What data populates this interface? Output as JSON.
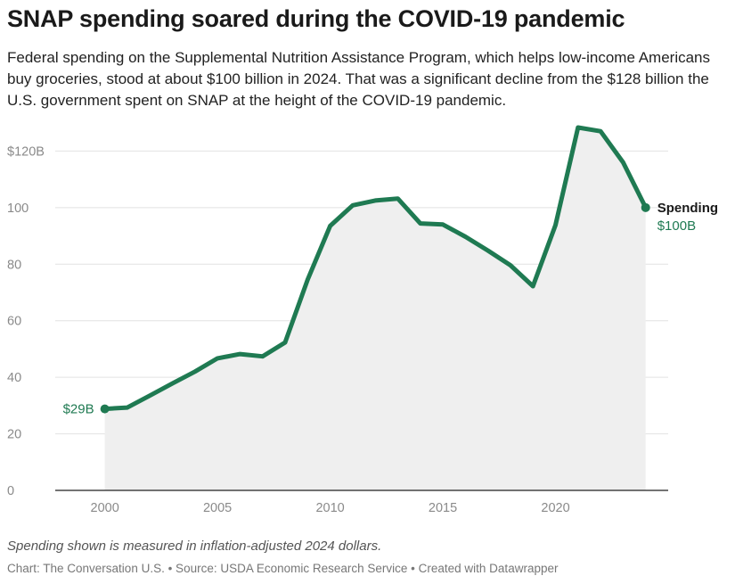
{
  "header": {
    "title": "SNAP spending soared during the COVID-19 pandemic",
    "subtitle": "Federal spending on the Supplemental Nutrition Assistance Program, which helps low-income Americans buy groceries, stood at about $100 billion in 2024. That was a significant decline from the $128 billion the U.S. government spent on SNAP at the height of the COVID-19 pandemic."
  },
  "footer": {
    "note": "Spending shown is measured in inflation-adjusted 2024 dollars.",
    "credits": "Chart: The Conversation U.S. • Source: USDA Economic Research Service • Created with Datawrapper"
  },
  "colors": {
    "line": "#1f7a52",
    "area": "#efefef",
    "grid": "#e2e2e2",
    "axis": "#222222"
  },
  "chart_data": {
    "type": "area",
    "x": [
      2000,
      2001,
      2002,
      2003,
      2004,
      2005,
      2006,
      2007,
      2008,
      2009,
      2010,
      2011,
      2012,
      2013,
      2014,
      2015,
      2016,
      2017,
      2018,
      2019,
      2020,
      2021,
      2022,
      2023,
      2024
    ],
    "series": [
      {
        "name": "Spending",
        "values": [
          28.8,
          29.3,
          33.5,
          37.8,
          42.0,
          46.7,
          48.2,
          47.4,
          52.3,
          74.5,
          93.5,
          100.8,
          102.5,
          103.2,
          94.4,
          94.0,
          89.7,
          84.8,
          79.6,
          72.2,
          93.8,
          128.3,
          127.0,
          116.0,
          100.0
        ]
      }
    ],
    "xticks": [
      2000,
      2005,
      2010,
      2015,
      2020
    ],
    "xtick_labels": [
      "2000",
      "2005",
      "2010",
      "2015",
      "2020"
    ],
    "yticks": [
      0,
      20,
      40,
      60,
      80,
      100,
      120
    ],
    "ytick_labels": [
      "0",
      "20",
      "40",
      "60",
      "80",
      "100",
      "$120B"
    ],
    "xlim": [
      1997.8,
      2025
    ],
    "ylim": [
      0,
      128
    ],
    "grid": true,
    "legend": "none",
    "annotations": {
      "start_label": "$29B",
      "end_series_label": "Spending",
      "end_value_label": "$100B"
    }
  }
}
